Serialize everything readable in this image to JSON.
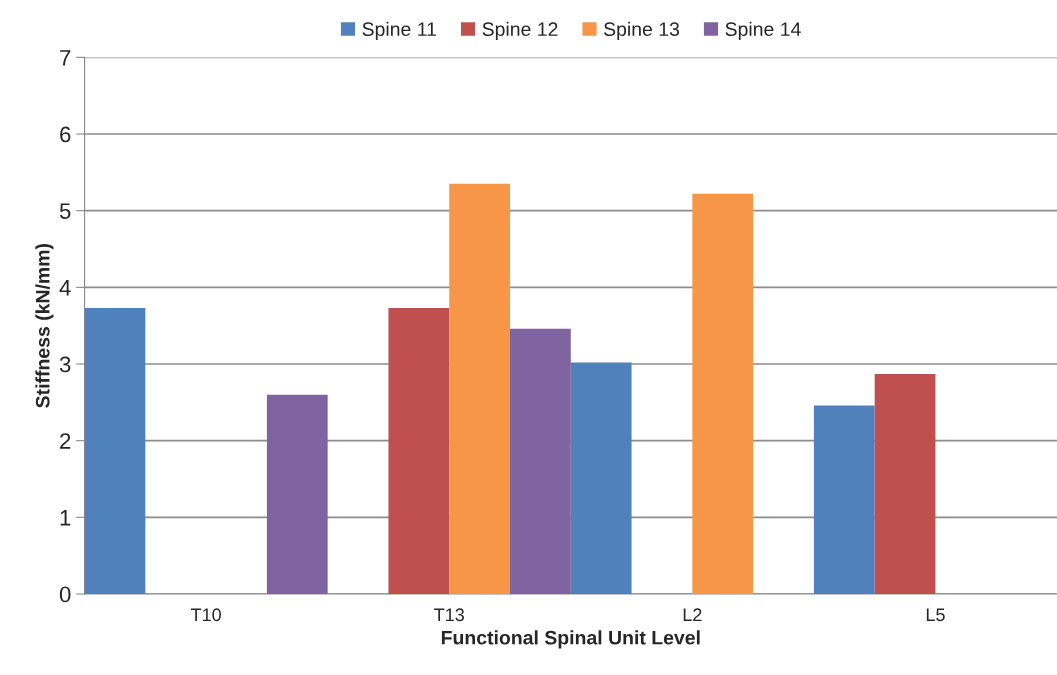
{
  "chart_data": {
    "type": "bar",
    "xlabel": "Functional Spinal Unit Level",
    "ylabel": "Stiffness (kN/mm)",
    "categories": [
      "T10",
      "T13",
      "L2",
      "L5"
    ],
    "series": [
      {
        "name": "Spine 11",
        "color": "#4f81bd",
        "values": [
          3.73,
          null,
          3.02,
          2.46
        ]
      },
      {
        "name": "Spine 12",
        "color": "#c0504d",
        "values": [
          null,
          3.73,
          null,
          2.87
        ]
      },
      {
        "name": "Spine 13",
        "color": "#f79646",
        "values": [
          null,
          5.35,
          5.22,
          null
        ]
      },
      {
        "name": "Spine 14",
        "color": "#8064a2",
        "values": [
          2.6,
          3.46,
          null,
          null
        ]
      }
    ],
    "ylim": [
      0,
      7
    ],
    "yticks": [
      0,
      1,
      2,
      3,
      4,
      5,
      6,
      7
    ],
    "grid": "y",
    "legend": "top"
  }
}
